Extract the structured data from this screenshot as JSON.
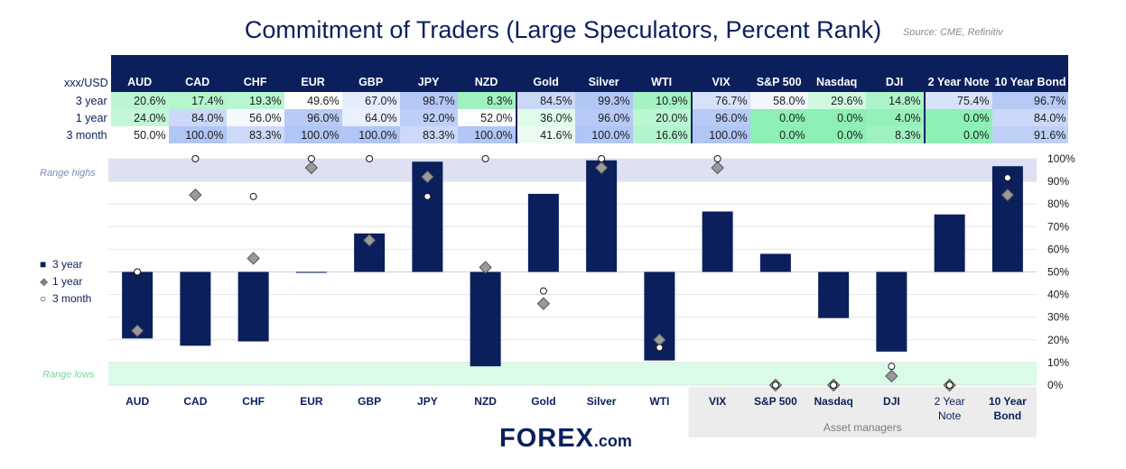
{
  "title": "Commitment of Traders (Large Speculators, Percent Rank)",
  "source": "Source: CME, Refinitiv",
  "colors": {
    "navy": "#0b1f5c",
    "range_high": "#dde1f2",
    "range_low": "#d9fbe8",
    "asset_bg": "#ececec"
  },
  "table": {
    "corner": "xxx/USD",
    "headers": [
      "AUD",
      "CAD",
      "CHF",
      "EUR",
      "GBP",
      "JPY",
      "NZD",
      "Gold",
      "Silver",
      "WTI",
      "VIX",
      "S&P 500",
      "Nasdaq",
      "DJI",
      "2 Year Note",
      "10 Year Bond"
    ],
    "rows": [
      {
        "label": "3 year",
        "cells": [
          "20.6%",
          "17.4%",
          "19.3%",
          "49.6%",
          "67.0%",
          "98.7%",
          "8.3%",
          "84.5%",
          "99.3%",
          "10.9%",
          "76.7%",
          "58.0%",
          "29.6%",
          "14.8%",
          "75.4%",
          "96.7%"
        ]
      },
      {
        "label": "1 year",
        "cells": [
          "24.0%",
          "84.0%",
          "56.0%",
          "96.0%",
          "64.0%",
          "92.0%",
          "52.0%",
          "36.0%",
          "96.0%",
          "20.0%",
          "96.0%",
          "0.0%",
          "0.0%",
          "4.0%",
          "0.0%",
          "84.0%"
        ]
      },
      {
        "label": "3 month",
        "cells": [
          "50.0%",
          "100.0%",
          "83.3%",
          "100.0%",
          "100.0%",
          "83.3%",
          "100.0%",
          "41.6%",
          "100.0%",
          "16.6%",
          "100.0%",
          "0.0%",
          "0.0%",
          "8.3%",
          "0.0%",
          "91.6%"
        ]
      }
    ]
  },
  "chart": {
    "range_highs_label": "Range highs",
    "range_lows_label": "Range lows",
    "asset_managers_label": "Asset managers",
    "legend": [
      "3 year",
      "1 year",
      "3 month"
    ]
  },
  "chart_data": {
    "type": "bar",
    "categories": [
      "AUD",
      "CAD",
      "CHF",
      "EUR",
      "GBP",
      "JPY",
      "NZD",
      "Gold",
      "Silver",
      "WTI",
      "VIX",
      "S&P 500",
      "Nasdaq",
      "DJI",
      "2 Year Note",
      "10 Year Bond"
    ],
    "baseline": 50,
    "series": [
      {
        "name": "3 year",
        "type": "bar",
        "values": [
          20.6,
          17.4,
          19.3,
          49.6,
          67.0,
          98.7,
          8.3,
          84.5,
          99.3,
          10.9,
          76.7,
          58.0,
          29.6,
          14.8,
          75.4,
          96.7
        ]
      },
      {
        "name": "1 year",
        "type": "scatter",
        "values": [
          24.0,
          84.0,
          56.0,
          96.0,
          64.0,
          92.0,
          52.0,
          36.0,
          96.0,
          20.0,
          96.0,
          0.0,
          0.0,
          4.0,
          0.0,
          84.0
        ]
      },
      {
        "name": "3 month",
        "type": "scatter",
        "values": [
          50.0,
          100.0,
          83.3,
          100.0,
          100.0,
          83.3,
          100.0,
          41.6,
          100.0,
          16.6,
          100.0,
          0.0,
          0.0,
          8.3,
          0.0,
          91.6
        ]
      }
    ],
    "ylim": [
      0,
      100
    ],
    "yticks": [
      "0%",
      "10%",
      "20%",
      "30%",
      "40%",
      "50%",
      "60%",
      "70%",
      "80%",
      "90%",
      "100%"
    ],
    "range_high": [
      90,
      100
    ],
    "range_low": [
      0,
      10
    ],
    "grid": true,
    "legend_position": "left"
  },
  "logo": {
    "main": "FOREX",
    "suffix": ".com"
  }
}
